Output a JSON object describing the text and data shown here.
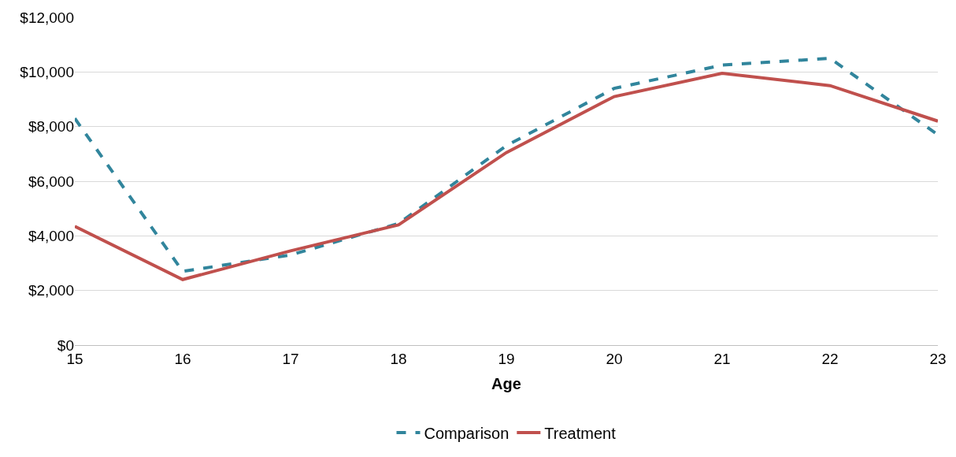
{
  "chart_data": {
    "type": "line",
    "xlabel": "Age",
    "x": [
      15,
      16,
      17,
      18,
      19,
      20,
      21,
      22,
      23
    ],
    "series": [
      {
        "name": "Comparison",
        "color": "#31859c",
        "line_style": "dashed",
        "values": [
          8300,
          2700,
          3300,
          4450,
          7300,
          9400,
          10250,
          10500,
          7700
        ]
      },
      {
        "name": "Treatment",
        "color": "#c0504d",
        "line_style": "solid",
        "values": [
          4350,
          2400,
          3450,
          4400,
          7050,
          9100,
          9950,
          9500,
          8200
        ]
      }
    ],
    "xlim": [
      15,
      23
    ],
    "xticks": [
      15,
      16,
      17,
      18,
      19,
      20,
      21,
      22,
      23
    ],
    "ylim": [
      0,
      12000
    ],
    "yticks": [
      {
        "value": 0,
        "label": "$0"
      },
      {
        "value": 2000,
        "label": "$2,000"
      },
      {
        "value": 4000,
        "label": "$4,000"
      },
      {
        "value": 6000,
        "label": "$6,000"
      },
      {
        "value": 8000,
        "label": "$8,000"
      },
      {
        "value": 10000,
        "label": "$10,000"
      },
      {
        "value": 12000,
        "label": "$12,000"
      }
    ],
    "grid": "y",
    "legend": "bottom",
    "marker": "none"
  }
}
